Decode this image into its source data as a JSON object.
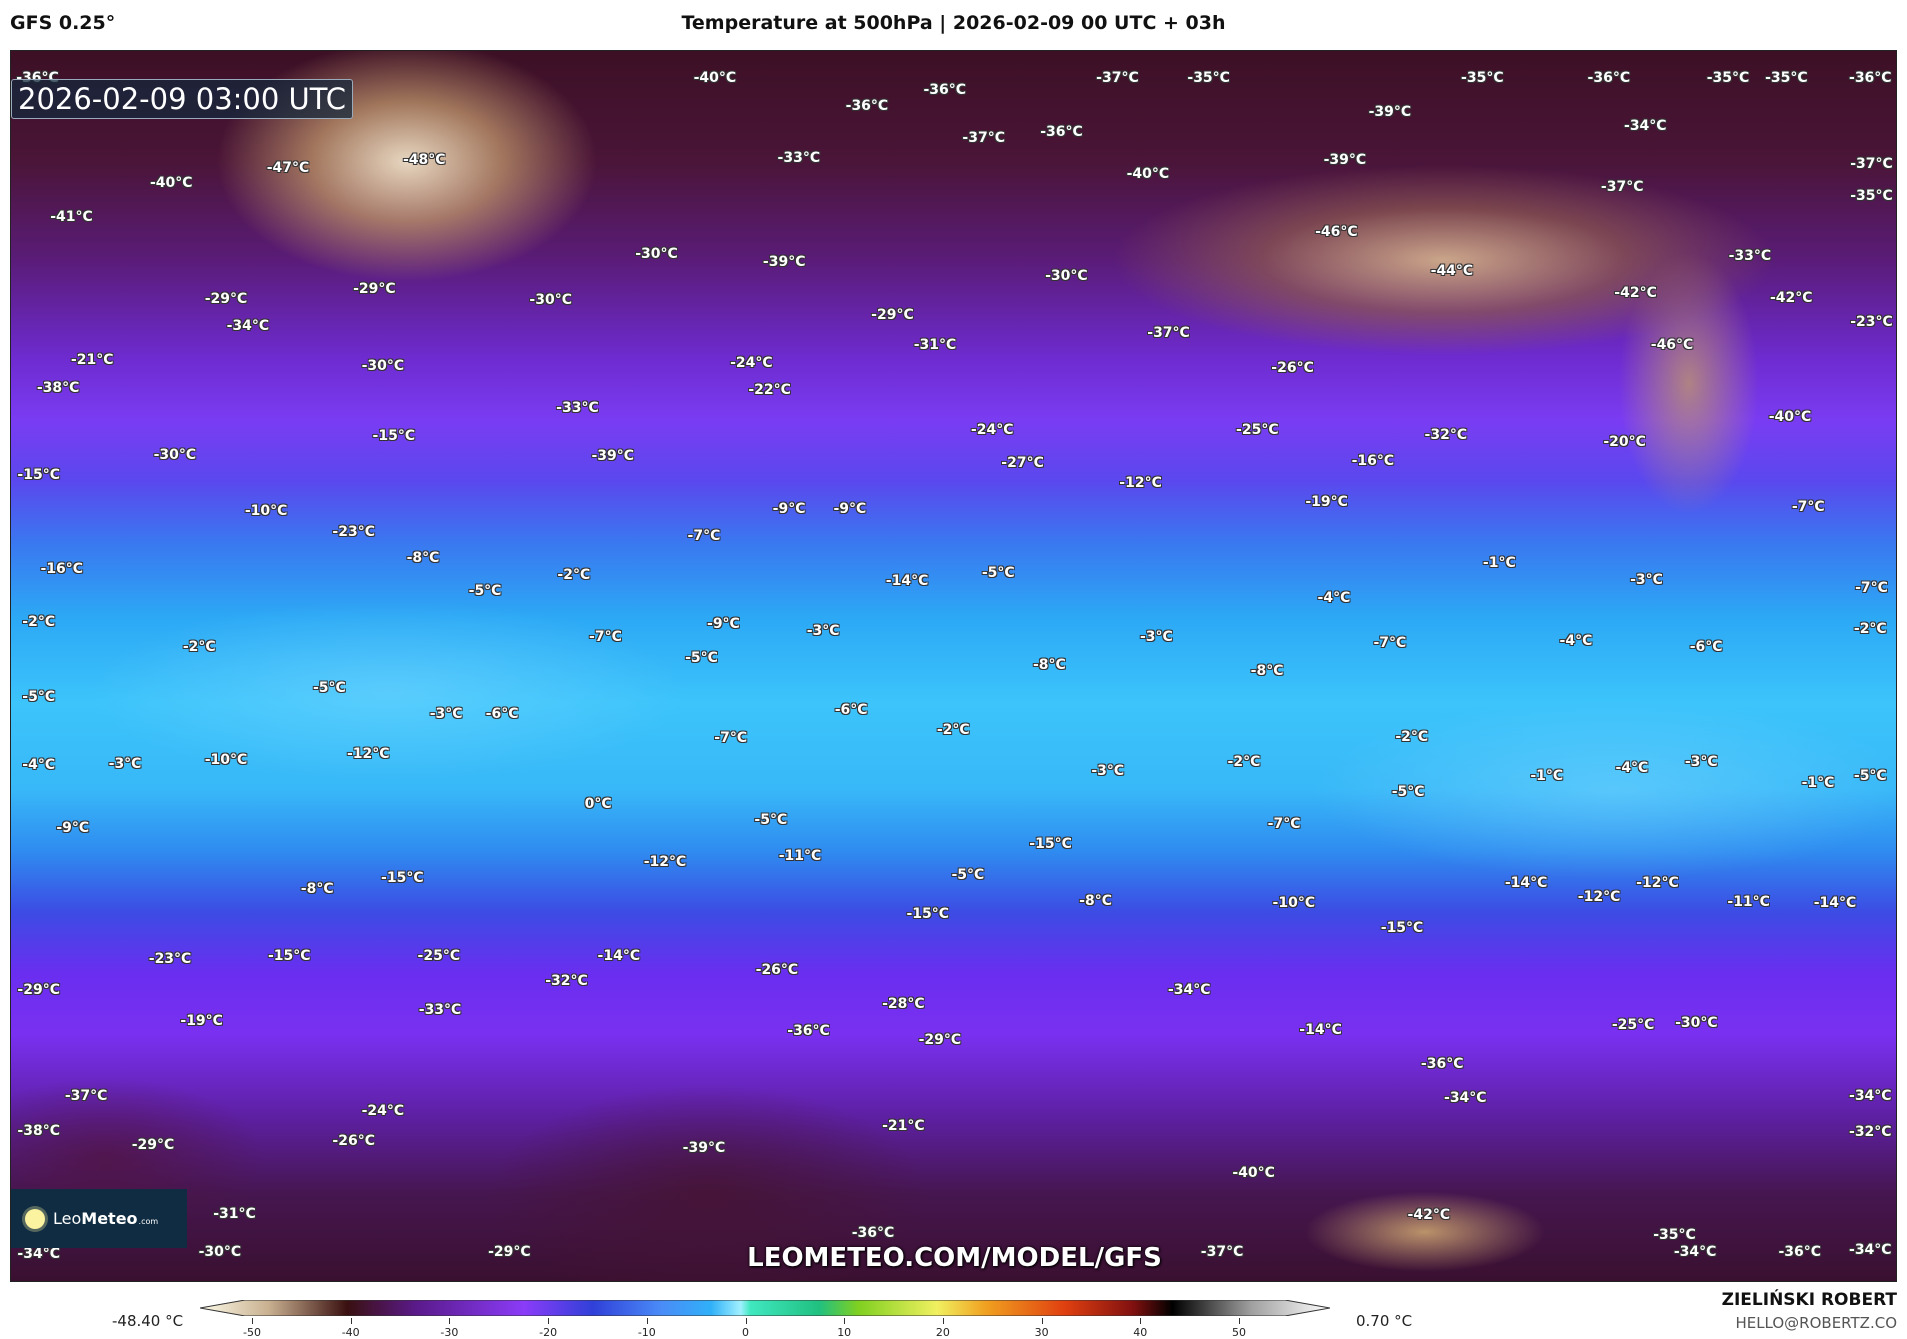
{
  "header": {
    "model": "GFS 0.25°",
    "title": "Temperature at 500hPa | 2026-02-09 00 UTC + 03h"
  },
  "map": {
    "valid_time": "2026-02-09 03:00 UTC",
    "watermark": "LEOMETEO.COM/MODEL/GFS",
    "logo": {
      "text_light": "Leo",
      "text_bold": "Meteo",
      "suffix": ".com"
    },
    "labels": [
      "-36°C",
      "-40°C",
      "-36°C",
      "-36°C",
      "-37°C",
      "-35°C",
      "-35°C",
      "-36°C",
      "-35°C",
      "-35°C",
      "-36°C",
      "-39°C",
      "-34°C",
      "-37°C",
      "-36°C",
      "-33°C",
      "-47°C",
      "-48°C",
      "-40°C",
      "-40°C",
      "-39°C",
      "-37°C",
      "-37°C",
      "-35°C",
      "-41°C",
      "-46°C",
      "-30°C",
      "-39°C",
      "-44°C",
      "-30°C",
      "-33°C",
      "-29°C",
      "-29°C",
      "-30°C",
      "-42°C",
      "-42°C",
      "-34°C",
      "-29°C",
      "-23°C",
      "-37°C",
      "-31°C",
      "-46°C",
      "-21°C",
      "-30°C",
      "-26°C",
      "-24°C",
      "-22°C",
      "-38°C",
      "-33°C",
      "-40°C",
      "-15°C",
      "-24°C",
      "-25°C",
      "-32°C",
      "-20°C",
      "-30°C",
      "-39°C",
      "-27°C",
      "-16°C",
      "-15°C",
      "-12°C",
      "-19°C",
      "-7°C",
      "-10°C",
      "-9°C",
      "-9°C",
      "-23°C",
      "-7°C",
      "-8°C",
      "-16°C",
      "-2°C",
      "-5°C",
      "-1°C",
      "-3°C",
      "-14°C",
      "-7°C",
      "-5°C",
      "-4°C",
      "-2°C",
      "-9°C",
      "-3°C",
      "-2°C",
      "-2°C",
      "-7°C",
      "-3°C",
      "-7°C",
      "-4°C",
      "-6°C",
      "-5°C",
      "-8°C",
      "-8°C",
      "-5°C",
      "-5°C",
      "-3°C",
      "-6°C",
      "-6°C",
      "-2°C",
      "-7°C",
      "-2°C",
      "-12°C",
      "-4°C",
      "-3°C",
      "-10°C",
      "-2°C",
      "-4°C",
      "-3°C",
      "-5°C",
      "-1°C",
      "-1°C",
      "-3°C",
      "-5°C",
      "0°C",
      "-9°C",
      "-5°C",
      "-7°C",
      "-15°C",
      "-11°C",
      "-12°C",
      "-15°C",
      "-5°C",
      "-8°C",
      "-14°C",
      "-12°C",
      "-12°C",
      "-8°C",
      "-10°C",
      "-11°C",
      "-14°C",
      "-15°C",
      "-15°C",
      "-15°C",
      "-25°C",
      "-23°C",
      "-14°C",
      "-26°C",
      "-32°C",
      "-29°C",
      "-34°C",
      "-28°C",
      "-33°C",
      "-19°C",
      "-36°C",
      "-14°C",
      "-29°C",
      "-25°C",
      "-30°C",
      "-36°C",
      "-37°C",
      "-34°C",
      "-34°C",
      "-24°C",
      "-38°C",
      "-21°C",
      "-32°C",
      "-26°C",
      "-29°C",
      "-39°C",
      "-40°C",
      "-31°C",
      "-42°C",
      "-36°C",
      "-35°C",
      "-34°C",
      "-30°C",
      "-29°C",
      "-37°C",
      "-34°C",
      "-36°C",
      "-34°C"
    ]
  },
  "colorbar": {
    "min_label": "-48.40 °C",
    "max_label": "0.70 °C",
    "range": [
      -55,
      60
    ],
    "ticks": [
      "-50",
      "-40",
      "-30",
      "-20",
      "-10",
      "0",
      "10",
      "20",
      "30",
      "40",
      "50"
    ],
    "stops": [
      [
        "-55",
        "#fdfbe8"
      ],
      [
        "-48",
        "#c8b090"
      ],
      [
        "-40",
        "#3a1010"
      ],
      [
        "-33",
        "#5a1a8a"
      ],
      [
        "-22",
        "#8a3cf8"
      ],
      [
        "-15",
        "#3040d8"
      ],
      [
        "-8",
        "#4a8cf8"
      ],
      [
        "-3",
        "#30b0f8"
      ],
      [
        "0",
        "#a0f0ff"
      ],
      [
        "1",
        "#40e8c0"
      ],
      [
        "8",
        "#20c080"
      ],
      [
        "12",
        "#80d020"
      ],
      [
        "20",
        "#f0f060"
      ],
      [
        "25",
        "#f0a020"
      ],
      [
        "33",
        "#e04010"
      ],
      [
        "40",
        "#801010"
      ],
      [
        "44",
        "#000000"
      ],
      [
        "52",
        "#a0a0a0"
      ],
      [
        "60",
        "#ffffff"
      ]
    ]
  },
  "footer": {
    "author": "ZIELIŃSKI ROBERT",
    "email": "HELLO@ROBERTZ.CO"
  }
}
